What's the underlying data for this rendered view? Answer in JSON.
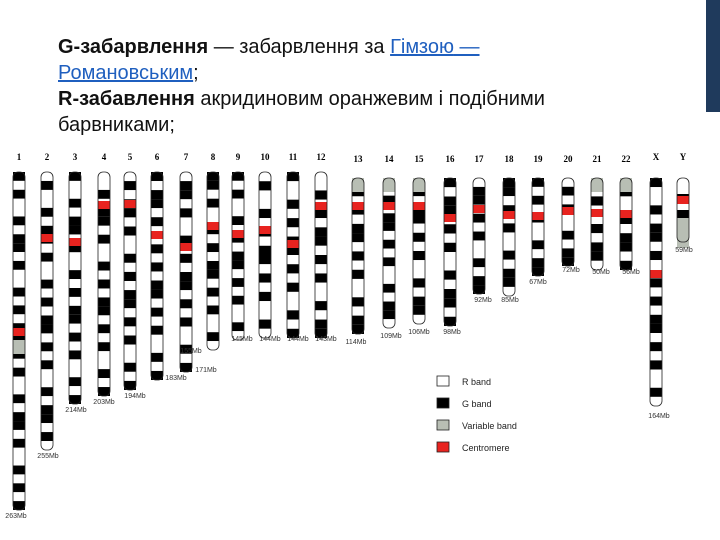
{
  "header": {
    "line1_bold": "G-забарвлення",
    "line1_text": " — забарвлення за ",
    "line1_link": "Гімзою",
    "line1_link2": " —",
    "line2_link": "Романовським",
    "line2_text": ";",
    "line3_bold": "R-забавлення",
    "line3_text": " акридиновим оранжевим і подібними",
    "line4_text": "барвниками;"
  },
  "colors": {
    "accent_bar": "#1f3a5c",
    "link": "#1f5fbf",
    "g_band": "#000000",
    "r_band": "#ffffff",
    "variable": "#b8beb4",
    "centromere": "#e8231f"
  },
  "ideogram": {
    "labels": [
      "1",
      "2",
      "3",
      "4",
      "5",
      "6",
      "7",
      "8",
      "9",
      "10",
      "11",
      "12",
      "13",
      "14",
      "15",
      "16",
      "17",
      "18",
      "19",
      "20",
      "21",
      "22",
      "X",
      "Y"
    ],
    "sizes": [
      "263Mb",
      "255Mb",
      "214Mb",
      "203Mb",
      "194Mb",
      "183Mb",
      "171Mb",
      "155Mb",
      "145Mb",
      "144Mb",
      "144Mb",
      "143Mb",
      "114Mb",
      "109Mb",
      "106Mb",
      "98Mb",
      "92Mb",
      "85Mb",
      "67Mb",
      "72Mb",
      "50Mb",
      "56Mb",
      "164Mb",
      "59Mb"
    ],
    "legend": [
      {
        "label": "R band",
        "color": "#ffffff"
      },
      {
        "label": "G band",
        "color": "#000000"
      },
      {
        "label": "Variable band",
        "color": "#b8beb4"
      },
      {
        "label": "Centromere",
        "color": "#e8231f"
      }
    ]
  }
}
